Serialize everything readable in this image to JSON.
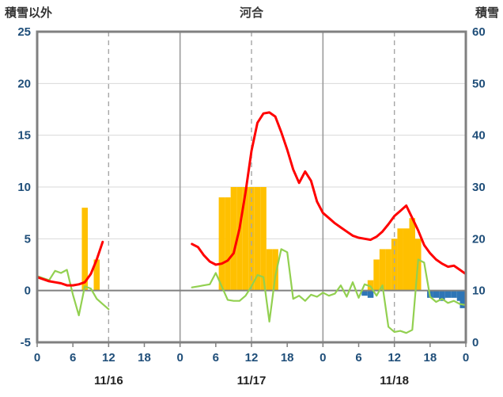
{
  "header": {
    "left_axis_title": "積雪以外",
    "title": "河合",
    "right_axis_title": "積雪"
  },
  "chart_data": {
    "type": "line+bar",
    "title": "河合",
    "x_axis": {
      "total_hours": 72,
      "tick_step": 6,
      "tick_labels": [
        "0",
        "6",
        "12",
        "18",
        "0",
        "6",
        "12",
        "18",
        "0",
        "6",
        "12",
        "18",
        "0"
      ],
      "date_labels": [
        "11/16",
        "11/17",
        "11/18"
      ]
    },
    "y_left": {
      "title": "積雪以外",
      "min": -5,
      "max": 25,
      "ticks": [
        25,
        20,
        15,
        10,
        5,
        0,
        -5
      ]
    },
    "y_right": {
      "title": "積雪",
      "min": 0,
      "max": 60,
      "ticks": [
        60,
        50,
        40,
        30,
        20,
        10,
        0
      ]
    },
    "colors": {
      "red_line": "#ff0000",
      "green_line": "#92d050",
      "orange_bars": "#ffc000",
      "blue_bars": "#2e75b6",
      "purple_line": "#7030a0",
      "border": "#808080",
      "zero_line": "#808080",
      "gridline": "#d9d9d9",
      "day_gridline": "#9a9a9a",
      "dashed_gridline": "#a6a6a6",
      "tick_label": "#1f4e79"
    },
    "series": {
      "red_line": {
        "axis": "left",
        "segments": [
          [
            [
              0,
              1.3
            ],
            [
              1,
              1.1
            ],
            [
              2,
              0.9
            ],
            [
              3,
              0.8
            ],
            [
              4,
              0.7
            ],
            [
              5,
              0.5
            ],
            [
              6,
              0.5
            ],
            [
              7,
              0.6
            ],
            [
              8,
              0.8
            ],
            [
              9,
              1.6
            ],
            [
              10,
              3.0
            ],
            [
              11,
              4.7
            ]
          ],
          [
            [
              26,
              4.5
            ],
            [
              27,
              4.2
            ],
            [
              28,
              3.4
            ],
            [
              29,
              2.8
            ],
            [
              30,
              2.5
            ],
            [
              31,
              2.6
            ],
            [
              32,
              2.9
            ],
            [
              33,
              3.6
            ],
            [
              34,
              6.0
            ],
            [
              35,
              9.5
            ],
            [
              36,
              13.5
            ],
            [
              37,
              16.2
            ],
            [
              38,
              17.1
            ],
            [
              39,
              17.2
            ],
            [
              40,
              16.8
            ],
            [
              41,
              15.3
            ],
            [
              42,
              13.6
            ],
            [
              43,
              11.7
            ],
            [
              44,
              10.4
            ],
            [
              45,
              11.5
            ],
            [
              46,
              10.6
            ],
            [
              47,
              8.6
            ],
            [
              48,
              7.5
            ],
            [
              49,
              7.0
            ],
            [
              50,
              6.5
            ],
            [
              51,
              6.1
            ],
            [
              52,
              5.7
            ],
            [
              53,
              5.3
            ],
            [
              54,
              5.1
            ],
            [
              55,
              5.0
            ],
            [
              56,
              4.9
            ],
            [
              57,
              5.2
            ],
            [
              58,
              5.7
            ],
            [
              59,
              6.4
            ],
            [
              60,
              7.2
            ],
            [
              61,
              7.7
            ],
            [
              62,
              8.2
            ],
            [
              63,
              7.0
            ],
            [
              64,
              5.8
            ],
            [
              65,
              4.4
            ],
            [
              66,
              3.6
            ],
            [
              67,
              3.0
            ],
            [
              68,
              2.6
            ],
            [
              69,
              2.3
            ],
            [
              70,
              2.4
            ],
            [
              71,
              2.0
            ],
            [
              72,
              1.6
            ]
          ]
        ]
      },
      "green_line": {
        "axis": "left",
        "segments": [
          [
            [
              0,
              1.4
            ],
            [
              1,
              1.2
            ],
            [
              2,
              1.0
            ],
            [
              3,
              1.9
            ],
            [
              4,
              1.7
            ],
            [
              5,
              2.0
            ],
            [
              6,
              -0.4
            ],
            [
              7,
              -2.4
            ],
            [
              8,
              0.4
            ],
            [
              9,
              0.2
            ],
            [
              10,
              -0.8
            ],
            [
              11,
              -1.3
            ],
            [
              12,
              -1.8
            ]
          ],
          [
            [
              26,
              0.3
            ],
            [
              27,
              0.4
            ],
            [
              28,
              0.5
            ],
            [
              29,
              0.6
            ],
            [
              30,
              1.7
            ],
            [
              31,
              0.4
            ],
            [
              32,
              -0.9
            ],
            [
              33,
              -1.0
            ],
            [
              34,
              -1.0
            ],
            [
              35,
              -0.5
            ],
            [
              36,
              0.4
            ],
            [
              37,
              1.5
            ],
            [
              38,
              1.3
            ],
            [
              39,
              -3.0
            ],
            [
              40,
              1.4
            ],
            [
              41,
              4.0
            ],
            [
              42,
              3.7
            ],
            [
              43,
              -0.8
            ],
            [
              44,
              -0.5
            ],
            [
              45,
              -1.0
            ],
            [
              46,
              -0.4
            ],
            [
              47,
              -0.6
            ],
            [
              48,
              -0.2
            ],
            [
              49,
              -0.5
            ],
            [
              50,
              -0.3
            ],
            [
              51,
              0.5
            ],
            [
              52,
              -0.6
            ],
            [
              53,
              0.8
            ],
            [
              54,
              -0.7
            ],
            [
              55,
              0.6
            ],
            [
              56,
              0.4
            ],
            [
              57,
              -0.5
            ],
            [
              58,
              0.5
            ],
            [
              59,
              -3.5
            ],
            [
              60,
              -4.0
            ],
            [
              61,
              -3.9
            ],
            [
              62,
              -4.1
            ],
            [
              63,
              -3.8
            ],
            [
              64,
              3.0
            ],
            [
              65,
              2.7
            ],
            [
              66,
              -0.6
            ],
            [
              67,
              -1.1
            ],
            [
              68,
              -0.8
            ],
            [
              69,
              -1.2
            ],
            [
              70,
              -1.0
            ],
            [
              71,
              -1.3
            ],
            [
              72,
              -1.4
            ]
          ]
        ]
      },
      "orange_bars": {
        "axis": "left",
        "bars": [
          [
            8,
            8
          ],
          [
            10,
            3
          ],
          [
            31,
            9
          ],
          [
            32,
            9
          ],
          [
            33,
            10
          ],
          [
            34,
            10
          ],
          [
            35,
            10
          ],
          [
            36,
            10
          ],
          [
            37,
            10
          ],
          [
            38,
            10
          ],
          [
            39,
            4
          ],
          [
            40,
            4
          ],
          [
            56,
            1
          ],
          [
            57,
            3
          ],
          [
            58,
            4
          ],
          [
            59,
            4
          ],
          [
            60,
            5
          ],
          [
            61,
            6
          ],
          [
            62,
            6
          ],
          [
            63,
            7
          ],
          [
            64,
            5
          ]
        ]
      },
      "blue_bars": {
        "axis": "left",
        "bars": [
          [
            55,
            -0.5
          ],
          [
            56,
            -0.7
          ],
          [
            66,
            -0.7
          ],
          [
            67,
            -0.7
          ],
          [
            68,
            -1.0
          ],
          [
            69,
            -0.7
          ],
          [
            70,
            -0.7
          ],
          [
            71,
            -1.0
          ],
          [
            72,
            -1.7
          ]
        ]
      },
      "purple_line": {
        "axis": "right",
        "segments": [
          [
            [
              0,
              0
            ],
            [
              72,
              0
            ]
          ]
        ]
      }
    }
  }
}
